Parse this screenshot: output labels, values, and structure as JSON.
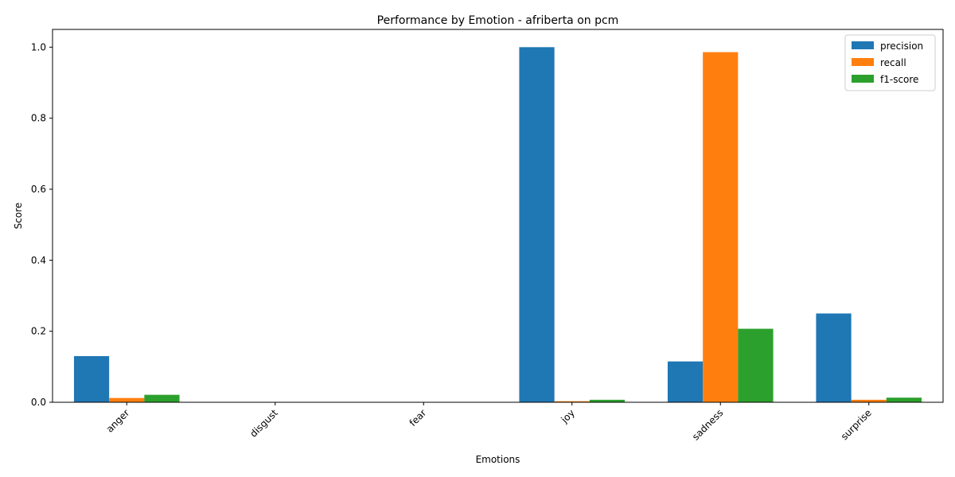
{
  "chart_data": {
    "type": "bar",
    "title": "Performance by Emotion - afriberta on pcm",
    "xlabel": "Emotions",
    "ylabel": "Score",
    "categories": [
      "anger",
      "disgust",
      "fear",
      "joy",
      "sadness",
      "surprise"
    ],
    "ylim": [
      0,
      1.05
    ],
    "yticks": [
      "0.0",
      "0.2",
      "0.4",
      "0.6",
      "0.8",
      "1.0"
    ],
    "legend_position": "top-right",
    "grid": false,
    "series": [
      {
        "name": "precision",
        "color": "#1f77b4",
        "values": [
          0.13,
          0.0,
          0.0,
          1.0,
          0.115,
          0.25
        ]
      },
      {
        "name": "recall",
        "color": "#ff7f0e",
        "values": [
          0.012,
          0.0,
          0.0,
          0.003,
          0.986,
          0.007
        ]
      },
      {
        "name": "f1-score",
        "color": "#2ca02c",
        "values": [
          0.021,
          0.0,
          0.0,
          0.007,
          0.207,
          0.013
        ]
      }
    ]
  }
}
